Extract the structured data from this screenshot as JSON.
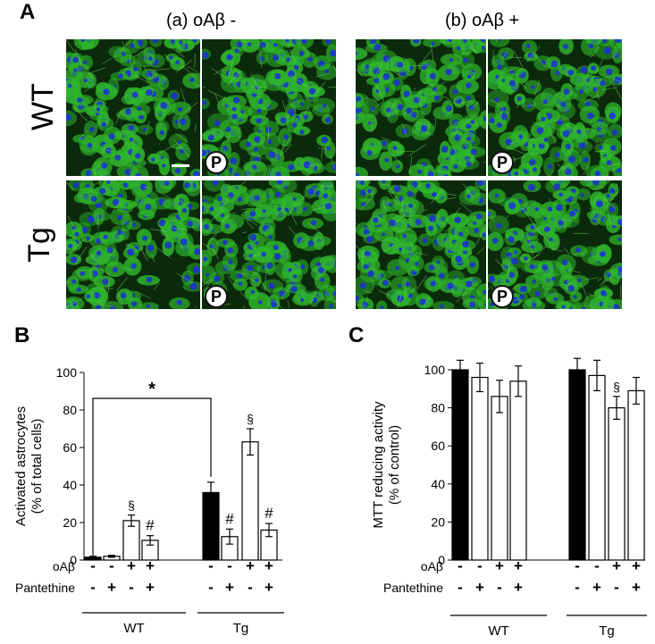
{
  "panel_a": {
    "letter": "A",
    "cond_a": "(a) oAβ -",
    "cond_b": "(b) oAβ +",
    "row_wt": "WT",
    "row_tg": "Tg",
    "p_label": "P",
    "colors": {
      "cytoskeleton": "#2fb52c",
      "nuclei": "#1a2fd6",
      "background": "#0b2a0b"
    }
  },
  "chart_data": [
    {
      "type": "bar",
      "panel": "B",
      "ylabel_line1": "Activated astrocytes",
      "ylabel_line2": "(% of total cells)",
      "ylim": [
        0,
        100
      ],
      "yticks": [
        0,
        20,
        40,
        60,
        80,
        100
      ],
      "groups": [
        "WT",
        "Tg"
      ],
      "rows": {
        "row1_label": "oAβ",
        "row2_label": "Pantethine"
      },
      "bars": [
        {
          "group": "WT",
          "oab": "-",
          "pan": "-",
          "value": 1.5,
          "err": 0.5,
          "fill": "black",
          "mark": ""
        },
        {
          "group": "WT",
          "oab": "-",
          "pan": "+",
          "value": 2,
          "err": 0.5,
          "fill": "white",
          "mark": ""
        },
        {
          "group": "WT",
          "oab": "+",
          "pan": "-",
          "value": 21,
          "err": 3,
          "fill": "white",
          "mark": "§"
        },
        {
          "group": "WT",
          "oab": "+",
          "pan": "+",
          "value": 10.5,
          "err": 2.5,
          "fill": "white",
          "mark": "#"
        },
        {
          "group": "Tg",
          "oab": "-",
          "pan": "-",
          "value": 36,
          "err": 5.5,
          "fill": "black",
          "mark": ""
        },
        {
          "group": "Tg",
          "oab": "-",
          "pan": "+",
          "value": 12.5,
          "err": 4,
          "fill": "white",
          "mark": "#"
        },
        {
          "group": "Tg",
          "oab": "+",
          "pan": "-",
          "value": 63,
          "err": 7,
          "fill": "white",
          "mark": "§"
        },
        {
          "group": "Tg",
          "oab": "+",
          "pan": "+",
          "value": 16,
          "err": 3.5,
          "fill": "white",
          "mark": "#"
        }
      ],
      "bracket_mark": "*"
    },
    {
      "type": "bar",
      "panel": "C",
      "ylabel_line1": "MTT reducing activity",
      "ylabel_line2": "(% of control)",
      "ylim": [
        0,
        100
      ],
      "yticks": [
        0,
        20,
        40,
        60,
        80,
        100
      ],
      "groups": [
        "WT",
        "Tg"
      ],
      "rows": {
        "row1_label": "oAβ",
        "row2_label": "Pantethine"
      },
      "bars": [
        {
          "group": "WT",
          "oab": "-",
          "pan": "-",
          "value": 100,
          "err": 5,
          "fill": "black",
          "mark": ""
        },
        {
          "group": "WT",
          "oab": "-",
          "pan": "+",
          "value": 96,
          "err": 7.5,
          "fill": "white",
          "mark": ""
        },
        {
          "group": "WT",
          "oab": "+",
          "pan": "-",
          "value": 86,
          "err": 8.5,
          "fill": "white",
          "mark": ""
        },
        {
          "group": "WT",
          "oab": "+",
          "pan": "+",
          "value": 94,
          "err": 8,
          "fill": "white",
          "mark": ""
        },
        {
          "group": "Tg",
          "oab": "-",
          "pan": "-",
          "value": 100,
          "err": 6,
          "fill": "black",
          "mark": ""
        },
        {
          "group": "Tg",
          "oab": "-",
          "pan": "+",
          "value": 97,
          "err": 8,
          "fill": "white",
          "mark": ""
        },
        {
          "group": "Tg",
          "oab": "+",
          "pan": "-",
          "value": 80,
          "err": 6,
          "fill": "white",
          "mark": "§"
        },
        {
          "group": "Tg",
          "oab": "+",
          "pan": "+",
          "value": 89,
          "err": 7,
          "fill": "white",
          "mark": ""
        }
      ]
    }
  ]
}
